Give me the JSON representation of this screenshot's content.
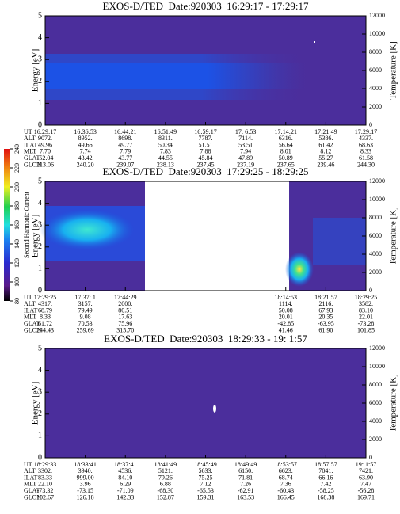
{
  "chart_data": [
    {
      "type": "spectrogram",
      "title": "EXOS-D/TED  Date:920303  16:29:17 - 17:29:17",
      "ylabel": "Energy [eV]",
      "y2label": "Temperature [K]",
      "ylim": [
        0,
        5
      ],
      "yticks": [
        0,
        1,
        2,
        3,
        4,
        5
      ],
      "y2lim": [
        0,
        12000
      ],
      "y2ticks": [
        0,
        2000,
        4000,
        6000,
        8000,
        10000,
        12000
      ],
      "table": {
        "row_labels": [
          "UT",
          "ALT",
          "ILAT",
          "MLT",
          "GLAT",
          "GLON"
        ],
        "rows": [
          [
            "16:29:17",
            "16:36:53",
            "16:44:21",
            "16:51:49",
            "16:59:17",
            "17: 6:53",
            "17:14:21",
            "17:21:49",
            "17:29:17"
          ],
          [
            "9072.",
            "8952.",
            "8698.",
            "8311.",
            "7787.",
            "7114.",
            "6316.",
            "5386.",
            "4337."
          ],
          [
            "49.96",
            "49.66",
            "49.77",
            "50.34",
            "51.51",
            "53.51",
            "56.64",
            "61.42",
            "68.63"
          ],
          [
            "7.70",
            "7.74",
            "7.79",
            "7.83",
            "7.88",
            "7.94",
            "8.01",
            "8.12",
            "8.33"
          ],
          [
            "-52.04",
            "43.42",
            "43.77",
            "44.55",
            "45.84",
            "47.89",
            "50.89",
            "55.27",
            "61.58"
          ],
          [
            "213.06",
            "240.20",
            "239.07",
            "238.13",
            "237.45",
            "237.19",
            "237.65",
            "239.46",
            "244.30"
          ]
        ]
      }
    },
    {
      "type": "spectrogram",
      "title": "EXOS-D/TED  Date:920303  17:29:25 - 18:29:25",
      "ylabel": "Energy [eV]",
      "y2label": "Temperature [K]",
      "ylim": [
        0,
        5
      ],
      "yticks": [
        0,
        1,
        2,
        3,
        4,
        5
      ],
      "y2lim": [
        0,
        12000
      ],
      "y2ticks": [
        0,
        2000,
        4000,
        6000,
        8000,
        10000,
        12000
      ],
      "colorbar": {
        "label": "Second Harmonic Current",
        "lim": [
          80,
          240
        ],
        "ticks": [
          80,
          100,
          120,
          140,
          160,
          180,
          200,
          220,
          240
        ]
      },
      "table": {
        "row_labels": [
          "UT",
          "ALT",
          "ILAT",
          "MLT",
          "GLAT",
          "GLON"
        ],
        "rows": [
          [
            "17:29:25",
            "17:37: 1",
            "17:44:29",
            null,
            null,
            null,
            "18:14:53",
            "18:21:57",
            "18:29:25"
          ],
          [
            "4317.",
            "3157.",
            "2000.",
            null,
            null,
            null,
            "1114.",
            "2116.",
            "3582."
          ],
          [
            "68.79",
            "79.49",
            "80.51",
            null,
            null,
            null,
            "50.08",
            "67.93",
            "83.10"
          ],
          [
            "8.33",
            "9.08",
            "17.63",
            null,
            null,
            null,
            "20.01",
            "20.35",
            "22.01"
          ],
          [
            "61.72",
            "70.53",
            "75.96",
            null,
            null,
            null,
            "-42.85",
            "-63.95",
            "-73.28"
          ],
          [
            "244.43",
            "259.69",
            "315.70",
            null,
            null,
            null,
            "41.46",
            "61.90",
            "101.85"
          ]
        ]
      }
    },
    {
      "type": "spectrogram",
      "title": "EXOS-D/TED  Date:920303  18:29:33 - 19: 1:57",
      "ylabel": "Energy [eV]",
      "y2label": "Temperature [K]",
      "ylim": [
        0,
        5
      ],
      "yticks": [
        0,
        1,
        2,
        3,
        4,
        5
      ],
      "y2lim": [
        0,
        12000
      ],
      "y2ticks": [
        0,
        2000,
        4000,
        6000,
        8000,
        10000,
        12000
      ],
      "table": {
        "row_labels": [
          "UT",
          "ALT",
          "ILAT",
          "MLT",
          "GLAT",
          "GLON"
        ],
        "rows": [
          [
            "18:29:33",
            "18:33:41",
            "18:37:41",
            "18:41:49",
            "18:45:49",
            "18:49:49",
            "18:53:57",
            "18:57:57",
            "19: 1:57"
          ],
          [
            "3302.",
            "3940.",
            "4536.",
            "5121.",
            "5633.",
            "6150.",
            "6623.",
            "7041.",
            "7421."
          ],
          [
            "83.33",
            "999.00",
            "84.10",
            "79.26",
            "75.25",
            "71.81",
            "68.74",
            "66.16",
            "63.90"
          ],
          [
            "22.10",
            "3.96",
            "6.29",
            "6.88",
            "7.12",
            "7.26",
            "7.36",
            "7.42",
            "7.47"
          ],
          [
            "-73.32",
            "-73.15",
            "-71.09",
            "-68.30",
            "-65.53",
            "-62.91",
            "-60.43",
            "-58.25",
            "-56.28"
          ],
          [
            "102.67",
            "126.18",
            "142.33",
            "152.87",
            "159.31",
            "163.53",
            "166.45",
            "168.38",
            "169.71"
          ]
        ]
      }
    }
  ]
}
